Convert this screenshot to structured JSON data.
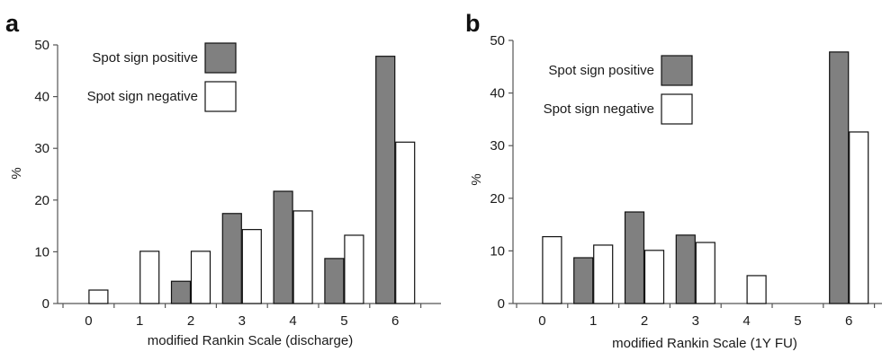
{
  "chart_data": [
    {
      "panel": "a",
      "type": "bar",
      "title": "",
      "xlabel": "modified Rankin Scale (discharge)",
      "ylabel": "%",
      "ylim": [
        0,
        50
      ],
      "yticks": [
        0,
        10,
        20,
        30,
        40,
        50
      ],
      "categories": [
        "0",
        "1",
        "2",
        "3",
        "4",
        "5",
        "6"
      ],
      "series": [
        {
          "name": "Spot sign positive",
          "color": "#808080",
          "values": [
            0,
            0,
            4.3,
            17.4,
            21.7,
            8.7,
            47.8
          ]
        },
        {
          "name": "Spot sign negative",
          "color": "#ffffff",
          "values": [
            2.6,
            10.1,
            10.1,
            14.3,
            17.9,
            13.2,
            31.2
          ]
        }
      ],
      "legend_position": "top-left",
      "grid": false
    },
    {
      "panel": "b",
      "type": "bar",
      "title": "",
      "xlabel": "modified Rankin Scale (1Y FU)",
      "ylabel": "%",
      "ylim": [
        0,
        50
      ],
      "yticks": [
        0,
        10,
        20,
        30,
        40,
        50
      ],
      "categories": [
        "0",
        "1",
        "2",
        "3",
        "4",
        "5",
        "6"
      ],
      "series": [
        {
          "name": "Spot sign positive",
          "color": "#808080",
          "values": [
            0,
            8.7,
            17.4,
            13.0,
            0,
            0,
            47.8
          ]
        },
        {
          "name": "Spot sign negative",
          "color": "#ffffff",
          "values": [
            12.7,
            11.1,
            10.1,
            11.6,
            5.3,
            0,
            32.6
          ]
        }
      ],
      "legend_position": "top-left",
      "grid": false
    }
  ]
}
